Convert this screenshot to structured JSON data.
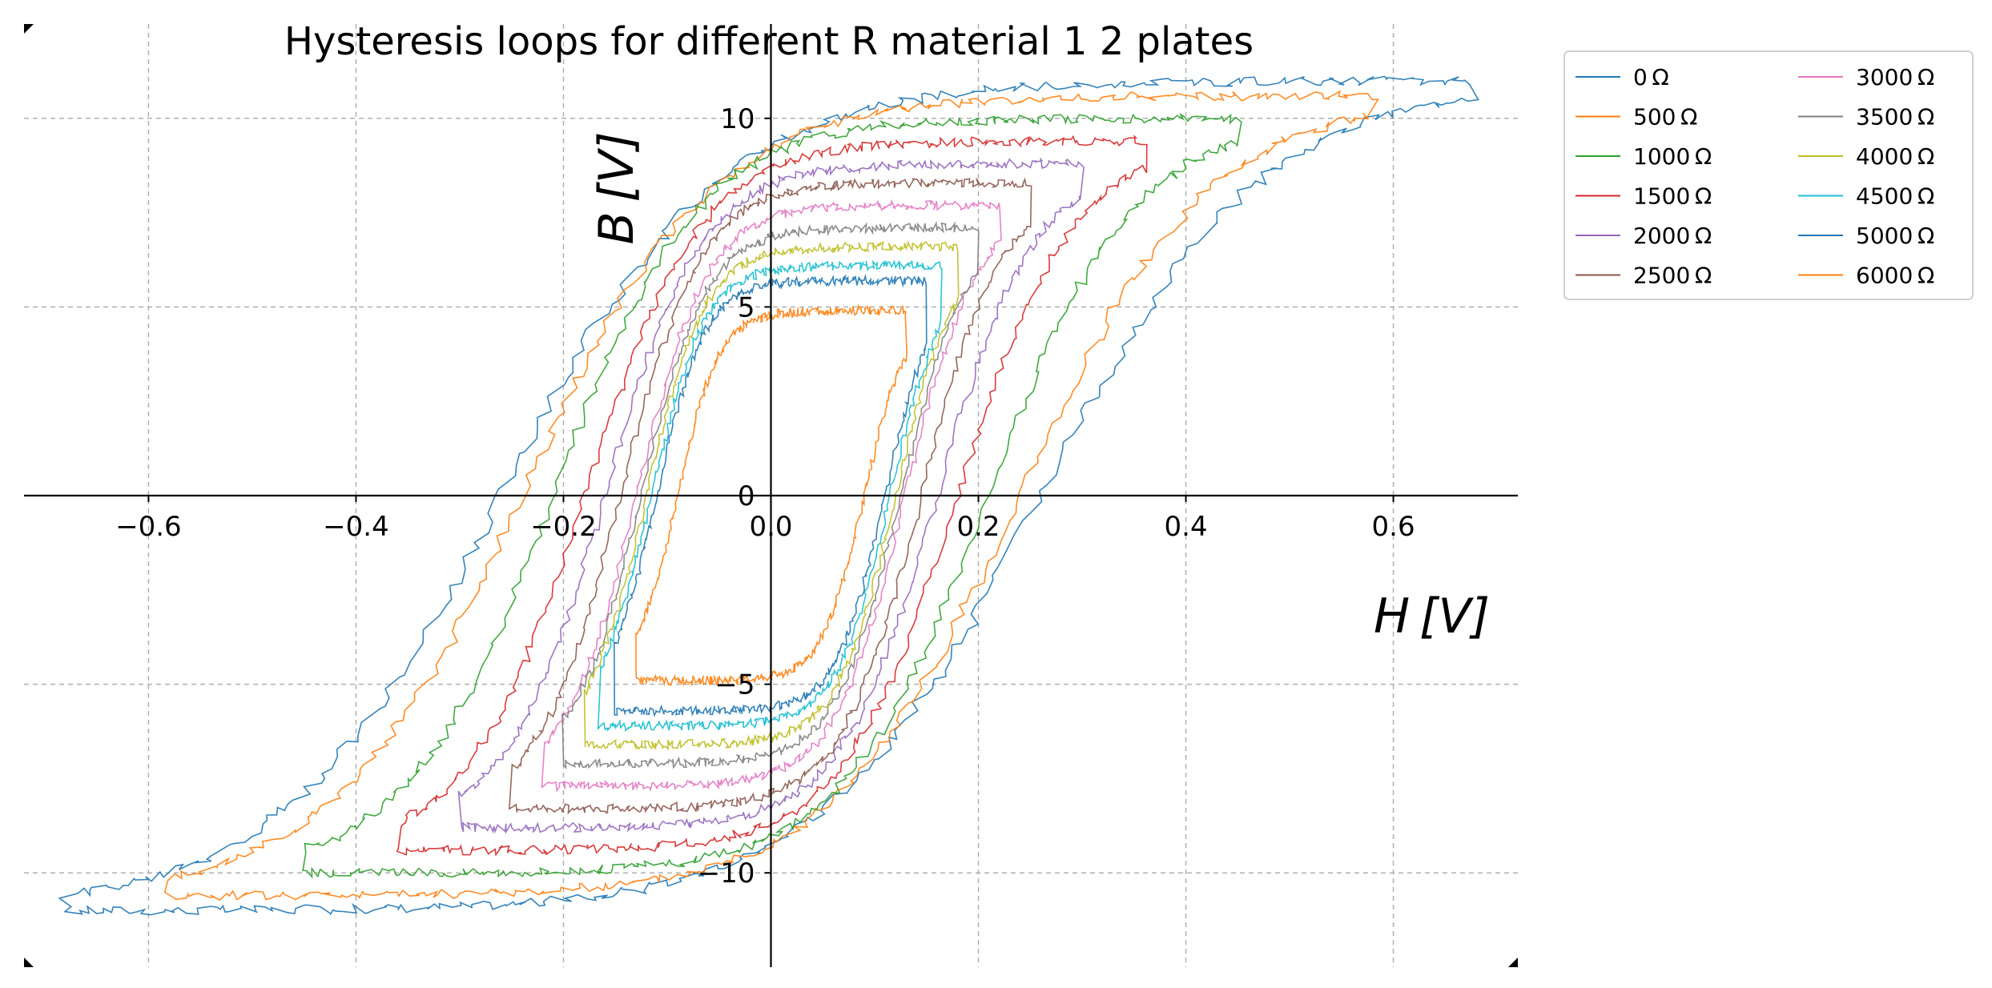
{
  "chart_data": {
    "type": "line",
    "title": "Hysteresis loops for different R material 1 2 plates",
    "xlabel": "H [V]",
    "ylabel": "B [V]",
    "xlim": [
      -0.72,
      0.72
    ],
    "ylim": [
      -12.5,
      12.5
    ],
    "xticks": [
      -0.6,
      -0.4,
      -0.2,
      0.0,
      0.2,
      0.4,
      0.6
    ],
    "xtick_labels": [
      "−0.6",
      "−0.4",
      "−0.2",
      "0.0",
      "0.2",
      "0.4",
      "0.6"
    ],
    "yticks": [
      -10,
      -5,
      0,
      5,
      10
    ],
    "ytick_labels": [
      "−10",
      "−5",
      "0",
      "5",
      "10"
    ],
    "grid": true,
    "legend_position": "outside-top-right",
    "legend_columns": 2,
    "series": [
      {
        "name": "0 Ω",
        "color": "#1f77b4",
        "Hmax": 0.68,
        "Bmax": 11.0,
        "Hc": 0.26,
        "Br": 7.8
      },
      {
        "name": "500 Ω",
        "color": "#ff7f0e",
        "Hmax": 0.58,
        "Bmax": 10.6,
        "Hc": 0.24,
        "Br": 7.6
      },
      {
        "name": "1000 Ω",
        "color": "#2ca02c",
        "Hmax": 0.45,
        "Bmax": 10.0,
        "Hc": 0.21,
        "Br": 7.0
      },
      {
        "name": "1500 Ω",
        "color": "#d62728",
        "Hmax": 0.36,
        "Bmax": 9.4,
        "Hc": 0.18,
        "Br": 6.3
      },
      {
        "name": "2000 Ω",
        "color": "#9467bd",
        "Hmax": 0.3,
        "Bmax": 8.8,
        "Hc": 0.16,
        "Br": 5.8
      },
      {
        "name": "2500 Ω",
        "color": "#8c564b",
        "Hmax": 0.25,
        "Bmax": 8.3,
        "Hc": 0.145,
        "Br": 5.5
      },
      {
        "name": "3000 Ω",
        "color": "#e377c2",
        "Hmax": 0.22,
        "Bmax": 7.7,
        "Hc": 0.13,
        "Br": 5.2
      },
      {
        "name": "3500 Ω",
        "color": "#7f7f7f",
        "Hmax": 0.2,
        "Bmax": 7.1,
        "Hc": 0.125,
        "Br": 5.0
      },
      {
        "name": "4000 Ω",
        "color": "#bcbd22",
        "Hmax": 0.18,
        "Bmax": 6.6,
        "Hc": 0.12,
        "Br": 4.9
      },
      {
        "name": "4500 Ω",
        "color": "#17becf",
        "Hmax": 0.165,
        "Bmax": 6.1,
        "Hc": 0.115,
        "Br": 4.6
      },
      {
        "name": "5000 Ω",
        "color": "#1f77b4",
        "Hmax": 0.15,
        "Bmax": 5.7,
        "Hc": 0.11,
        "Br": 4.3
      },
      {
        "name": "6000 Ω",
        "color": "#ff7f0e",
        "Hmax": 0.13,
        "Bmax": 4.9,
        "Hc": 0.09,
        "Br": 3.8
      }
    ]
  }
}
